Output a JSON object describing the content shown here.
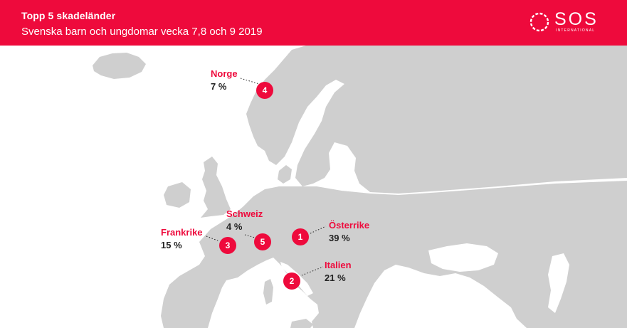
{
  "header": {
    "title": "Topp 5 skadeländer",
    "subtitle": "Svenska barn och ungdomar vecka 7,8 och 9 2019"
  },
  "logo": {
    "name": "SOS",
    "tagline": "INTERNATIONAL"
  },
  "colors": {
    "brand_red": "#ee0a3c",
    "land": "#cfcfcf",
    "sea": "#ffffff"
  },
  "countries": [
    {
      "rank": "1",
      "name": "Österrike",
      "percent": "39 %"
    },
    {
      "rank": "2",
      "name": "Italien",
      "percent": "21 %"
    },
    {
      "rank": "3",
      "name": "Frankrike",
      "percent": "15 %"
    },
    {
      "rank": "4",
      "name": "Norge",
      "percent": "7 %"
    },
    {
      "rank": "5",
      "name": "Schweiz",
      "percent": "4 %"
    }
  ]
}
